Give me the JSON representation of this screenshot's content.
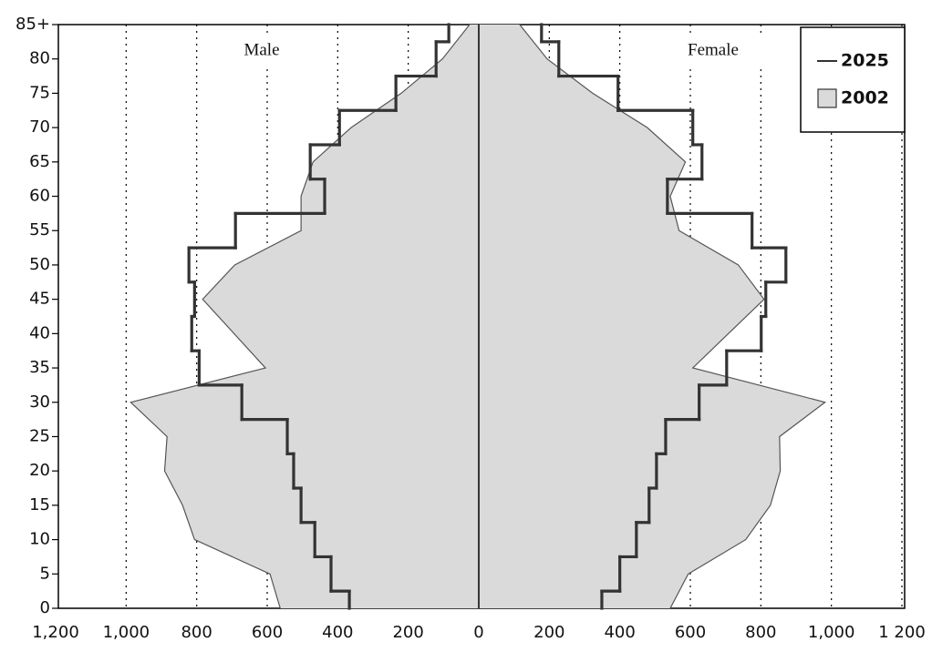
{
  "chart_data": {
    "type": "population-pyramid",
    "male_label": "Male",
    "female_label": "Female",
    "y": [
      0,
      5,
      10,
      15,
      20,
      25,
      30,
      35,
      40,
      45,
      50,
      55,
      60,
      65,
      70,
      75,
      80,
      85
    ],
    "series": [
      {
        "name": "2025",
        "style": "step",
        "color": "#333333",
        "male": [
          367,
          419,
          465,
          504,
          525,
          543,
          672,
          793,
          814,
          806,
          822,
          690,
          437,
          478,
          395,
          235,
          121,
          85
        ],
        "female": [
          349,
          400,
          447,
          483,
          504,
          530,
          625,
          703,
          801,
          814,
          871,
          775,
          535,
          633,
          607,
          395,
          227,
          178
        ]
      },
      {
        "name": "2002",
        "style": "area",
        "color": "#dadada",
        "male": [
          563,
          592,
          806,
          840,
          891,
          884,
          987,
          605,
          694,
          783,
          692,
          504,
          504,
          470,
          362,
          220,
          103,
          26
        ],
        "female": [
          543,
          594,
          757,
          827,
          855,
          853,
          982,
          607,
          708,
          809,
          736,
          568,
          543,
          586,
          478,
          323,
          194,
          116
        ]
      }
    ],
    "xlim": [
      -1200,
      1200
    ],
    "xticks": [
      {
        "value": -1200,
        "label": "1,200"
      },
      {
        "value": -1000,
        "label": "1,000"
      },
      {
        "value": -800,
        "label": "800"
      },
      {
        "value": -600,
        "label": "600"
      },
      {
        "value": -400,
        "label": "400"
      },
      {
        "value": -200,
        "label": "200"
      },
      0,
      200,
      400,
      600,
      800,
      {
        "value": 1000,
        "label": "1,000"
      },
      {
        "value": 1200,
        "label": "1 200"
      }
    ],
    "ylim": [
      0,
      85
    ],
    "yticks": [
      0,
      5,
      10,
      15,
      20,
      25,
      30,
      35,
      40,
      45,
      50,
      55,
      60,
      65,
      70,
      75,
      80,
      {
        "value": 85,
        "label": "85+"
      }
    ],
    "grid": true
  }
}
